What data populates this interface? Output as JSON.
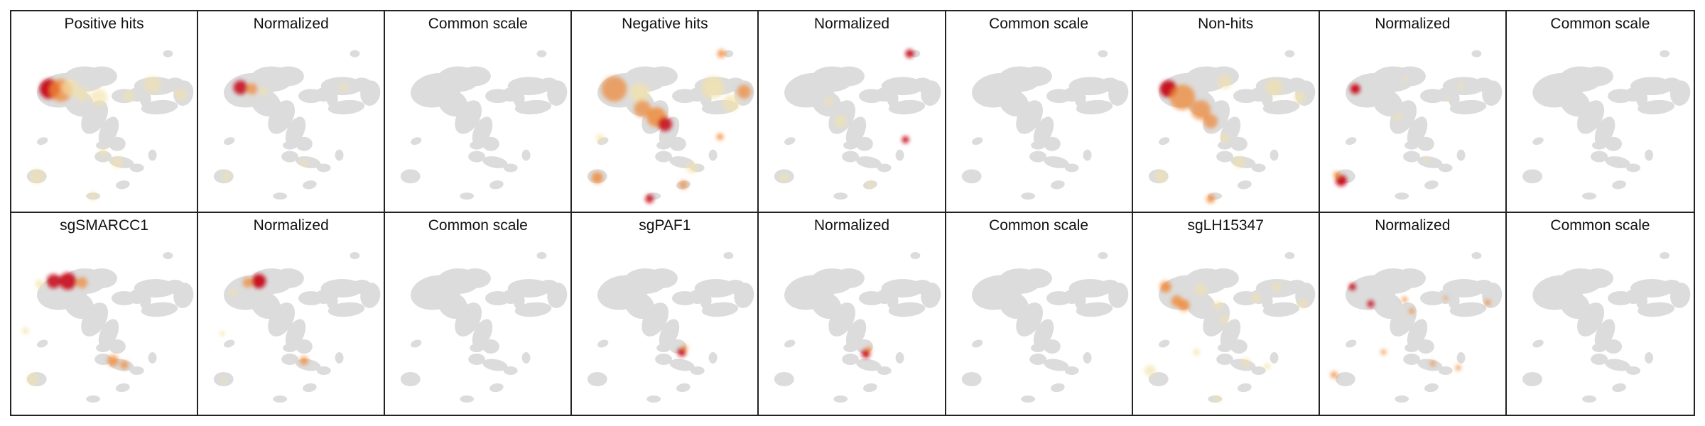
{
  "figure": {
    "panels": [
      {
        "title": "Positive hits",
        "heat": "positive"
      },
      {
        "title": "Normalized",
        "heat": "positive_norm"
      },
      {
        "title": "Common scale",
        "heat": "none"
      },
      {
        "title": "Negative hits",
        "heat": "negative"
      },
      {
        "title": "Normalized",
        "heat": "negative_norm"
      },
      {
        "title": "Common scale",
        "heat": "none"
      },
      {
        "title": "Non-hits",
        "heat": "nonhits"
      },
      {
        "title": "Normalized",
        "heat": "nonhits_norm"
      },
      {
        "title": "Common scale",
        "heat": "none"
      },
      {
        "title": "sgSMARCC1",
        "heat": "smarcc1"
      },
      {
        "title": "Normalized",
        "heat": "smarcc1_norm"
      },
      {
        "title": "Common scale",
        "heat": "none"
      },
      {
        "title": "sgPAF1",
        "heat": "paf1"
      },
      {
        "title": "Normalized",
        "heat": "paf1_norm"
      },
      {
        "title": "Common scale",
        "heat": "none"
      },
      {
        "title": "sgLH15347",
        "heat": "lh15347"
      },
      {
        "title": "Normalized",
        "heat": "lh15347_norm"
      },
      {
        "title": "Common scale",
        "heat": "none"
      }
    ]
  },
  "colors": {
    "background_cells": "#dcdcdc",
    "heat_low": "#f3e2a8",
    "heat_mid": "#ef8a3a",
    "heat_high": "#c8101c",
    "border": "#222222"
  }
}
